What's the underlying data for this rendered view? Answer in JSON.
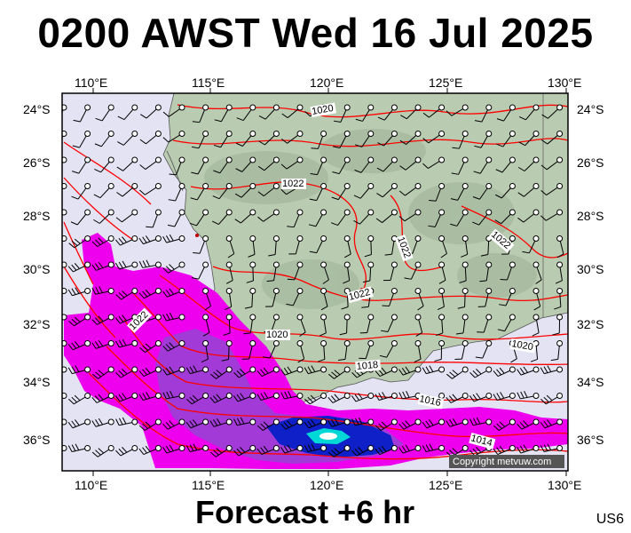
{
  "title": "0200 AWST Wed 16 Jul 2025",
  "footer": "Forecast +6 hr",
  "code": "US6",
  "copyright": "Copyright metvuw.com",
  "lon_ticks": [
    "110°E",
    "115°E",
    "120°E",
    "125°E",
    "130°E"
  ],
  "lat_ticks": [
    "24°S",
    "26°S",
    "28°S",
    "30°S",
    "32°S",
    "34°S",
    "36°S"
  ],
  "isobar_labels": [
    "1020",
    "1022",
    "1022",
    "1022",
    "1022",
    "1020",
    "1020",
    "1018",
    "1016",
    "1014",
    "1022"
  ],
  "colors": {
    "ocean": "#e3e3f4",
    "land": "#b9cbb0",
    "rain_light": "#ee00ee",
    "rain_medium": "#a23ad8",
    "rain_heavy": "#1020c8",
    "rain_peak": "#00d8d8",
    "isobar": "#ff0000"
  },
  "icons": [
    "wind-barb-icon",
    "station-circle-icon"
  ]
}
